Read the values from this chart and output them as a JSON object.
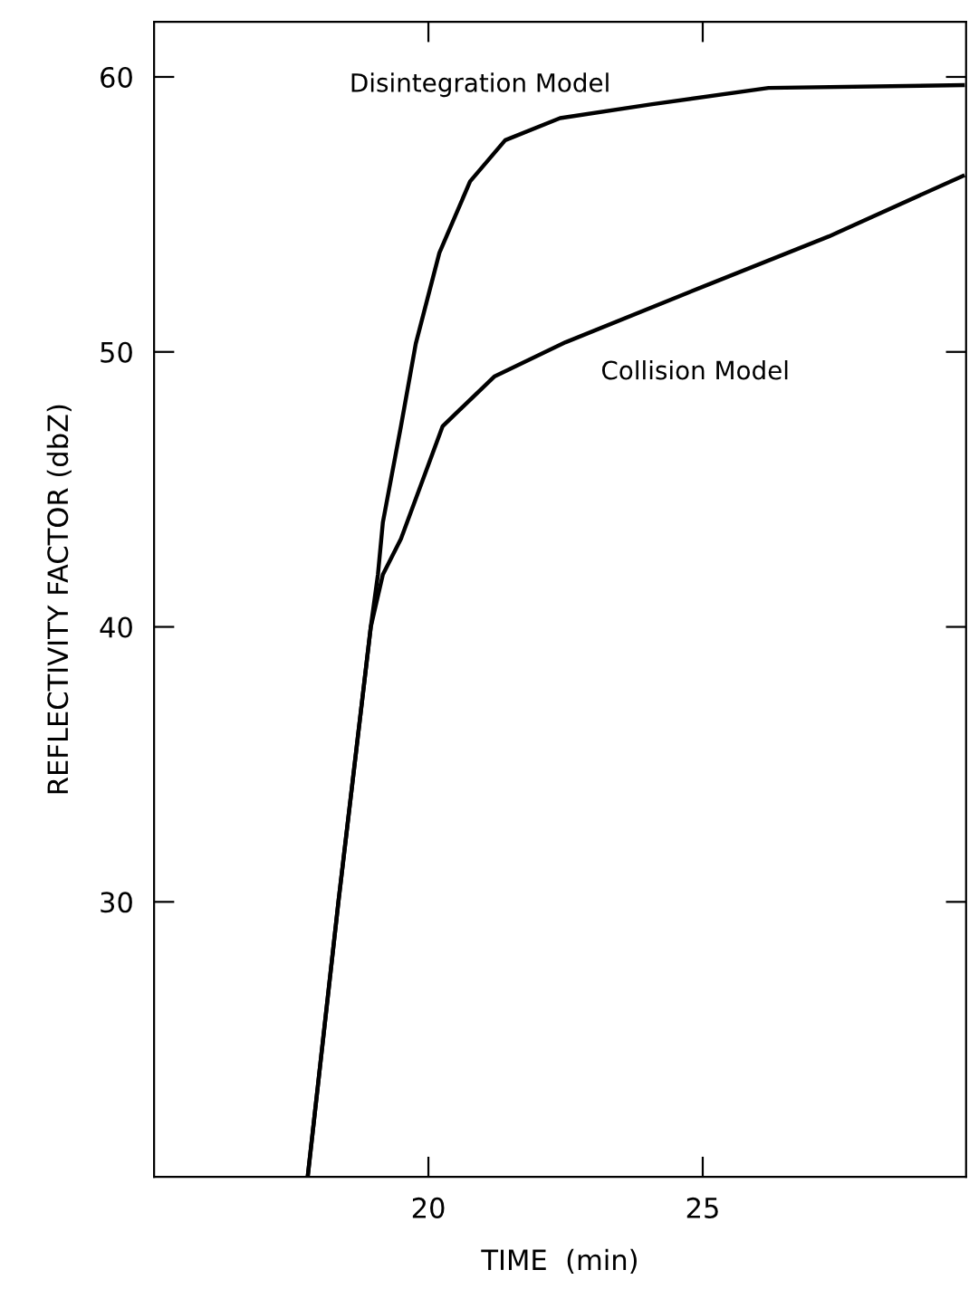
{
  "chart_data": {
    "type": "line",
    "xlabel": "TIME  (min)",
    "ylabel": "REFLECTIVITY FACTOR (dbZ)",
    "xlim": [
      15,
      29.8
    ],
    "ylim": [
      20,
      62
    ],
    "xticks": [
      20,
      25
    ],
    "yticks": [
      30,
      40,
      50,
      60
    ],
    "grid": false,
    "legend": false,
    "marker": "none",
    "line_style": "solid",
    "series": [
      {
        "name": "Disintegration Model",
        "color": "#000000",
        "x": [
          17.8,
          18.36,
          18.95,
          19.08,
          19.17,
          19.5,
          19.77,
          20.2,
          20.76,
          21.4,
          22.4,
          24.05,
          26.2,
          29.74
        ],
        "values": [
          20,
          30,
          40,
          41.9,
          43.8,
          47.3,
          50.3,
          53.6,
          56.2,
          57.7,
          58.5,
          59.0,
          59.6,
          59.7
        ]
      },
      {
        "name": "Collision Model",
        "color": "#000000",
        "x": [
          17.8,
          18.36,
          18.95,
          19.17,
          19.5,
          20.26,
          21.2,
          22.5,
          25.1,
          27.3,
          29.74
        ],
        "values": [
          20,
          30,
          40,
          41.9,
          43.2,
          47.3,
          49.1,
          50.35,
          52.45,
          54.2,
          56.4
        ]
      }
    ]
  }
}
